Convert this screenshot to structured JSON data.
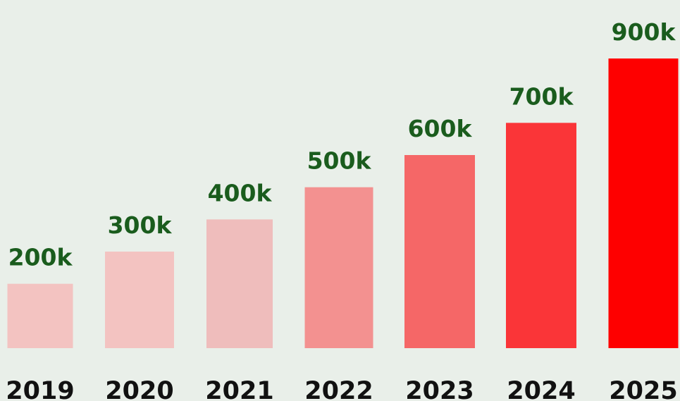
{
  "chart_data": {
    "type": "bar",
    "categories": [
      "2019",
      "2020",
      "2021",
      "2022",
      "2023",
      "2024",
      "2025"
    ],
    "values": [
      200000,
      300000,
      400000,
      500000,
      600000,
      700000,
      900000
    ],
    "data_labels": [
      "200k",
      "300k",
      "400k",
      "500k",
      "600k",
      "700k",
      "900k"
    ],
    "bar_colors": [
      "#f3c3c1",
      "#f3c3c1",
      "#efbdbc",
      "#f39190",
      "#f56767",
      "#fa3538",
      "#fe0000"
    ],
    "label_color": "#1a5c1d",
    "tick_color": "#111111",
    "grid": false,
    "legend": "none"
  }
}
